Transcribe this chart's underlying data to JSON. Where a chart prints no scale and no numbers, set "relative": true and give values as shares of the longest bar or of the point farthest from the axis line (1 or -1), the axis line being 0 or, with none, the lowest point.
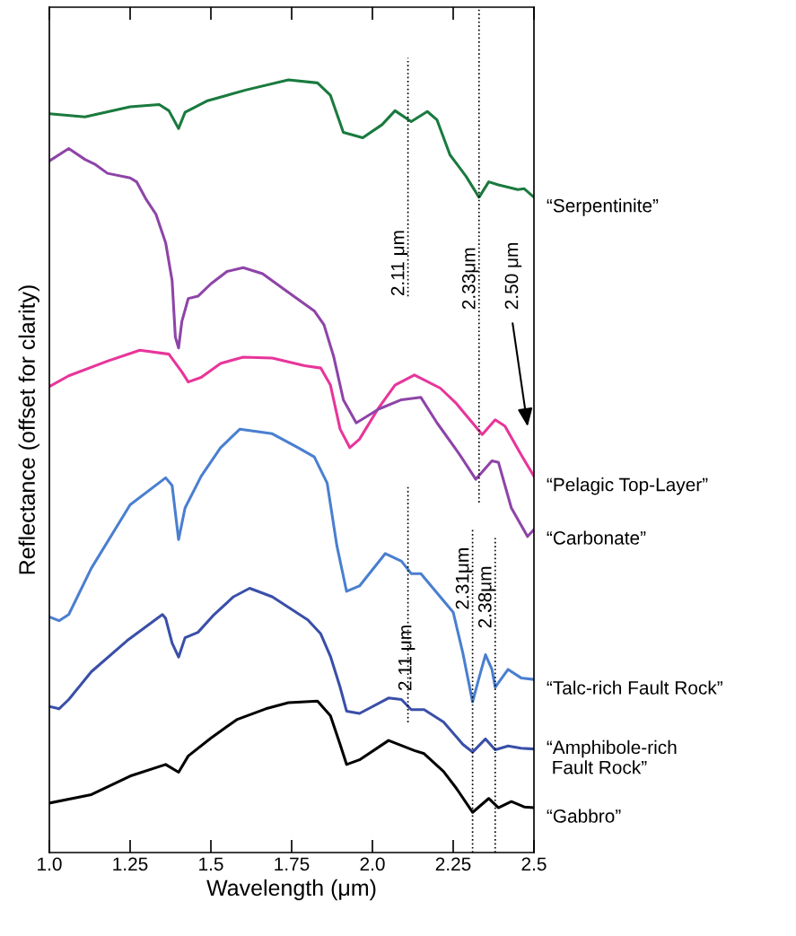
{
  "chart_data": {
    "type": "line",
    "relative": true,
    "xlabel": "Wavelength (μm)",
    "ylabel": "Reflectance (offset for clarity)",
    "xlim": [
      1.0,
      2.5
    ],
    "xticks": [
      {
        "value": 1,
        "label": "1.0"
      },
      1.25,
      1.5,
      1.75,
      {
        "value": 2,
        "label": "2.0"
      },
      2.25,
      2.5
    ],
    "series": [
      {
        "name": "“Serpentinite”",
        "color": "#1a7a3e",
        "x": [
          1.0,
          1.11,
          1.25,
          1.34,
          1.37,
          1.4,
          1.42,
          1.49,
          1.61,
          1.74,
          1.83,
          1.87,
          1.91,
          1.97,
          2.03,
          2.07,
          2.12,
          2.17,
          2.2,
          2.24,
          2.29,
          2.33,
          2.36,
          2.39,
          2.45,
          2.47,
          2.5
        ],
        "values": [
          0.956,
          0.952,
          0.965,
          0.968,
          0.96,
          0.937,
          0.958,
          0.973,
          0.987,
          1.0,
          0.996,
          0.98,
          0.932,
          0.925,
          0.942,
          0.96,
          0.946,
          0.959,
          0.948,
          0.903,
          0.875,
          0.848,
          0.868,
          0.864,
          0.858,
          0.859,
          0.848
        ]
      },
      {
        "name": "“Pelagic Top-Layer”",
        "color": "#e8359a",
        "x": [
          1.0,
          1.06,
          1.18,
          1.28,
          1.37,
          1.41,
          1.43,
          1.47,
          1.53,
          1.6,
          1.69,
          1.79,
          1.84,
          1.87,
          1.9,
          1.93,
          1.96,
          2.02,
          2.07,
          2.13,
          2.21,
          2.26,
          2.34,
          2.38,
          2.41,
          2.46,
          2.5
        ],
        "values": [
          0.603,
          0.617,
          0.636,
          0.65,
          0.645,
          0.622,
          0.609,
          0.615,
          0.633,
          0.641,
          0.64,
          0.63,
          0.627,
          0.605,
          0.548,
          0.524,
          0.535,
          0.576,
          0.605,
          0.618,
          0.601,
          0.581,
          0.541,
          0.56,
          0.552,
          0.515,
          0.487
        ]
      },
      {
        "name": "“Carbonate”",
        "color": "#8e44a8",
        "x": [
          1.0,
          1.06,
          1.11,
          1.14,
          1.18,
          1.25,
          1.27,
          1.3,
          1.33,
          1.36,
          1.38,
          1.39,
          1.4,
          1.41,
          1.43,
          1.46,
          1.5,
          1.55,
          1.6,
          1.66,
          1.73,
          1.79,
          1.82,
          1.85,
          1.88,
          1.91,
          1.95,
          2.02,
          2.09,
          2.15,
          2.2,
          2.27,
          2.32,
          2.37,
          2.39,
          2.43,
          2.48,
          2.5
        ],
        "values": [
          0.895,
          0.911,
          0.897,
          0.891,
          0.879,
          0.873,
          0.868,
          0.845,
          0.826,
          0.789,
          0.74,
          0.667,
          0.653,
          0.687,
          0.717,
          0.72,
          0.736,
          0.752,
          0.757,
          0.749,
          0.728,
          0.71,
          0.701,
          0.683,
          0.642,
          0.586,
          0.556,
          0.574,
          0.586,
          0.589,
          0.556,
          0.515,
          0.483,
          0.507,
          0.505,
          0.446,
          0.409,
          0.418
        ]
      },
      {
        "name": "“Talc-rich Fault Rock”",
        "color": "#4a7fd0",
        "x": [
          1.0,
          1.03,
          1.06,
          1.13,
          1.25,
          1.36,
          1.38,
          1.4,
          1.42,
          1.47,
          1.53,
          1.59,
          1.69,
          1.77,
          1.82,
          1.86,
          1.89,
          1.92,
          1.96,
          2.04,
          2.09,
          2.12,
          2.15,
          2.2,
          2.25,
          2.28,
          2.31,
          2.33,
          2.35,
          2.37,
          2.38,
          2.42,
          2.46,
          2.5
        ],
        "values": [
          0.305,
          0.3,
          0.308,
          0.368,
          0.45,
          0.485,
          0.475,
          0.405,
          0.446,
          0.487,
          0.524,
          0.548,
          0.542,
          0.524,
          0.512,
          0.478,
          0.397,
          0.338,
          0.345,
          0.387,
          0.377,
          0.361,
          0.361,
          0.336,
          0.311,
          0.258,
          0.195,
          0.226,
          0.256,
          0.237,
          0.214,
          0.237,
          0.226,
          0.224
        ]
      },
      {
        "name": "“Amphibole-rich\n Fault Rock”",
        "color": "#3a4fa8",
        "x": [
          1.0,
          1.03,
          1.06,
          1.13,
          1.24,
          1.35,
          1.36,
          1.38,
          1.4,
          1.42,
          1.46,
          1.51,
          1.57,
          1.62,
          1.69,
          1.8,
          1.84,
          1.87,
          1.9,
          1.92,
          1.96,
          2.05,
          2.09,
          2.12,
          2.16,
          2.22,
          2.28,
          2.31,
          2.35,
          2.38,
          2.42,
          2.46,
          2.5
        ],
        "values": [
          0.189,
          0.186,
          0.198,
          0.234,
          0.274,
          0.308,
          0.303,
          0.271,
          0.253,
          0.278,
          0.285,
          0.308,
          0.331,
          0.342,
          0.331,
          0.301,
          0.283,
          0.254,
          0.214,
          0.183,
          0.18,
          0.2,
          0.198,
          0.185,
          0.185,
          0.169,
          0.14,
          0.13,
          0.147,
          0.133,
          0.138,
          0.135,
          0.134
        ]
      },
      {
        "name": "“Gabbro”",
        "color": "#000000",
        "x": [
          1.0,
          1.13,
          1.25,
          1.36,
          1.4,
          1.43,
          1.5,
          1.58,
          1.67,
          1.74,
          1.83,
          1.87,
          1.9,
          1.92,
          1.96,
          2.05,
          2.13,
          2.16,
          2.22,
          2.26,
          2.31,
          2.36,
          2.39,
          2.43,
          2.47,
          2.5
        ],
        "values": [
          0.064,
          0.075,
          0.099,
          0.114,
          0.104,
          0.125,
          0.148,
          0.172,
          0.186,
          0.194,
          0.196,
          0.177,
          0.14,
          0.114,
          0.12,
          0.145,
          0.132,
          0.128,
          0.105,
          0.083,
          0.052,
          0.07,
          0.058,
          0.066,
          0.059,
          0.058
        ]
      }
    ],
    "ref_lines": [
      {
        "axis": "x",
        "value": 2.11,
        "label": "2.11 μm",
        "line_style": "dotted",
        "color": "#000000"
      },
      {
        "axis": "x",
        "value": 2.33,
        "label": "2.33μm",
        "line_style": "dotted",
        "color": "#000000"
      },
      {
        "axis": "x",
        "value": 2.31,
        "label": "2.31μm",
        "line_style": "dotted",
        "color": "#000000"
      },
      {
        "axis": "x",
        "value": 2.38,
        "label": "2.38μm",
        "line_style": "dotted",
        "color": "#000000"
      }
    ],
    "annotations": [
      "2.50 μm",
      "2.11 μm"
    ]
  }
}
